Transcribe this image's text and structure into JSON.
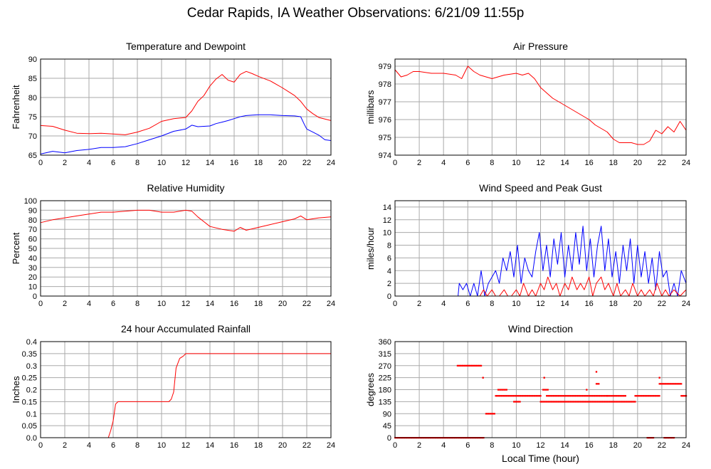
{
  "title": "Cedar Rapids, IA Weather Observations: 6/21/09 11:55p",
  "colors": {
    "red": "#ff0000",
    "blue": "#0000ff",
    "grid": "#aaaaaa",
    "frame": "#000000"
  },
  "chart_data": [
    {
      "id": "temp",
      "type": "line",
      "title": "Temperature and Dewpoint",
      "xlabel": "",
      "ylabel": "Fahrenheit",
      "xlim": [
        0,
        24
      ],
      "ylim": [
        65,
        90
      ],
      "x_ticks": [
        0,
        2,
        4,
        6,
        8,
        10,
        12,
        14,
        16,
        18,
        20,
        22,
        24
      ],
      "y_ticks": [
        65,
        70,
        75,
        80,
        85,
        90
      ],
      "grid": true,
      "series": [
        {
          "color": "#ff0000",
          "x": [
            0,
            1,
            2,
            3,
            4,
            5,
            6,
            7,
            8,
            9,
            10,
            11,
            12,
            12.5,
            13,
            13.5,
            14,
            14.5,
            15,
            15.5,
            16,
            16.5,
            17,
            17.5,
            18,
            19,
            20,
            21,
            21.5,
            22,
            22.5,
            23,
            24
          ],
          "y": [
            72.7,
            72.5,
            71.5,
            70.7,
            70.6,
            70.7,
            70.5,
            70.3,
            71.0,
            72.0,
            73.8,
            74.5,
            74.8,
            76.5,
            79.0,
            80.5,
            83.0,
            84.8,
            86.0,
            84.5,
            84.0,
            86.0,
            86.8,
            86.2,
            85.5,
            84.3,
            82.5,
            80.5,
            79.0,
            77.0,
            75.8,
            74.8,
            74.0
          ]
        },
        {
          "color": "#0000ff",
          "x": [
            0,
            1,
            2,
            3,
            4,
            5,
            6,
            7,
            8,
            9,
            10,
            11,
            12,
            12.5,
            13,
            13.5,
            14,
            14.5,
            15,
            15.5,
            16,
            16.5,
            17,
            17.5,
            18,
            19,
            20,
            21,
            21.5,
            21.8,
            22,
            22.5,
            23,
            23.5,
            24
          ],
          "y": [
            65.3,
            66.0,
            65.6,
            66.2,
            66.5,
            67.0,
            67.0,
            67.2,
            68.0,
            69.0,
            70.0,
            71.2,
            71.8,
            72.8,
            72.4,
            72.5,
            72.6,
            73.2,
            73.6,
            74.0,
            74.5,
            75.0,
            75.3,
            75.4,
            75.5,
            75.5,
            75.3,
            75.2,
            75.0,
            73.0,
            71.8,
            71.0,
            70.2,
            69.0,
            68.8
          ]
        }
      ]
    },
    {
      "id": "pressure",
      "type": "line",
      "title": "Air Pressure",
      "xlabel": "",
      "ylabel": "millibars",
      "xlim": [
        0,
        24
      ],
      "ylim": [
        974,
        979.4
      ],
      "x_ticks": [
        0,
        2,
        4,
        6,
        8,
        10,
        12,
        14,
        16,
        18,
        20,
        22,
        24
      ],
      "y_ticks": [
        974,
        975,
        976,
        977,
        978,
        979
      ],
      "grid": true,
      "series": [
        {
          "color": "#ff0000",
          "x": [
            0,
            0.5,
            1,
            1.5,
            2,
            3,
            4,
            5,
            5.5,
            6,
            6.5,
            7,
            8,
            9,
            10,
            10.5,
            11,
            11.5,
            12,
            12.5,
            13,
            13.5,
            14,
            14.5,
            15,
            15.5,
            16,
            16.5,
            17,
            17.5,
            18,
            18.5,
            19,
            19.5,
            20,
            20.5,
            21,
            21.5,
            22,
            22.5,
            23,
            23.5,
            24
          ],
          "y": [
            978.8,
            978.4,
            978.5,
            978.7,
            978.7,
            978.6,
            978.6,
            978.5,
            978.3,
            979.0,
            978.7,
            978.5,
            978.3,
            978.5,
            978.6,
            978.5,
            978.6,
            978.3,
            977.8,
            977.5,
            977.2,
            977.0,
            976.8,
            976.6,
            976.4,
            976.2,
            976.0,
            975.7,
            975.5,
            975.3,
            974.9,
            974.7,
            974.7,
            974.7,
            974.6,
            974.6,
            974.8,
            975.4,
            975.2,
            975.6,
            975.3,
            975.9,
            975.4
          ]
        }
      ]
    },
    {
      "id": "humidity",
      "type": "line",
      "title": "Relative Humidity",
      "xlabel": "",
      "ylabel": "Percent",
      "xlim": [
        0,
        24
      ],
      "ylim": [
        0,
        100
      ],
      "x_ticks": [
        0,
        2,
        4,
        6,
        8,
        10,
        12,
        14,
        16,
        18,
        20,
        22,
        24
      ],
      "y_ticks": [
        0,
        10,
        20,
        30,
        40,
        50,
        60,
        70,
        80,
        90,
        100
      ],
      "grid": true,
      "series": [
        {
          "color": "#ff0000",
          "x": [
            0,
            1,
            2,
            3,
            4,
            5,
            6,
            7,
            8,
            9,
            10,
            11,
            12,
            12.5,
            13,
            13.5,
            14,
            15,
            16,
            16.5,
            17,
            18,
            19,
            20,
            21,
            21.5,
            22,
            23,
            24
          ],
          "y": [
            77,
            80,
            82,
            84,
            86,
            88,
            88,
            89,
            90,
            90,
            88,
            88,
            90,
            89,
            83,
            78,
            73,
            70,
            68,
            72,
            69,
            72,
            75,
            78,
            81,
            84,
            80,
            82,
            83
          ]
        }
      ]
    },
    {
      "id": "wind",
      "type": "line",
      "title": "Wind Speed and Peak Gust",
      "xlabel": "",
      "ylabel": "miles/hour",
      "xlim": [
        0,
        24
      ],
      "ylim": [
        0,
        15
      ],
      "x_ticks": [
        0,
        2,
        4,
        6,
        8,
        10,
        12,
        14,
        16,
        18,
        20,
        22,
        24
      ],
      "y_ticks": [
        0,
        2,
        4,
        6,
        8,
        10,
        12,
        14
      ],
      "grid": true,
      "series": [
        {
          "color": "#0000ff",
          "x": [
            0,
            5.2,
            5.3,
            5.6,
            5.9,
            6.2,
            6.5,
            6.8,
            7.1,
            7.4,
            7.7,
            8.0,
            8.3,
            8.6,
            8.9,
            9.2,
            9.5,
            9.8,
            10.1,
            10.4,
            10.7,
            11.0,
            11.3,
            11.6,
            11.9,
            12.2,
            12.5,
            12.8,
            13.1,
            13.4,
            13.7,
            14.0,
            14.3,
            14.6,
            14.9,
            15.2,
            15.5,
            15.8,
            16.1,
            16.4,
            16.7,
            17.0,
            17.3,
            17.6,
            17.9,
            18.2,
            18.5,
            18.8,
            19.1,
            19.4,
            19.7,
            20.0,
            20.3,
            20.6,
            20.9,
            21.2,
            21.5,
            21.8,
            22.1,
            22.4,
            22.7,
            23.0,
            23.3,
            23.6,
            24.0
          ],
          "y": [
            0,
            0,
            2,
            1,
            2,
            0,
            2,
            0,
            4,
            0,
            2,
            3,
            4,
            2,
            6,
            4,
            7,
            3,
            8,
            2,
            6,
            4,
            3,
            7,
            10,
            4,
            8,
            3,
            9,
            5,
            10,
            3,
            8,
            4,
            10,
            5,
            11,
            4,
            9,
            3,
            8,
            11,
            4,
            9,
            3,
            7,
            2,
            8,
            4,
            9,
            2,
            8,
            3,
            7,
            2,
            6,
            1,
            7,
            3,
            4,
            0,
            2,
            0,
            4,
            2
          ]
        },
        {
          "color": "#ff0000",
          "x": [
            0,
            7.0,
            7.3,
            7.6,
            8.0,
            8.3,
            8.6,
            9.0,
            9.3,
            9.6,
            10.0,
            10.3,
            10.6,
            11.0,
            11.3,
            11.6,
            12.0,
            12.3,
            12.6,
            13.0,
            13.3,
            13.6,
            14.0,
            14.3,
            14.6,
            15.0,
            15.3,
            15.6,
            16.0,
            16.3,
            16.6,
            17.0,
            17.3,
            17.6,
            18.0,
            18.3,
            18.6,
            19.0,
            19.3,
            19.6,
            20.0,
            20.3,
            20.6,
            21.0,
            21.3,
            21.6,
            22.0,
            22.3,
            22.6,
            23.0,
            23.5,
            24.0
          ],
          "y": [
            0,
            0,
            1,
            0,
            1,
            0,
            0,
            1,
            0,
            0,
            1,
            0,
            2,
            0,
            1,
            0,
            2,
            1,
            3,
            1,
            2,
            0,
            2,
            1,
            3,
            1,
            2,
            1,
            3,
            0,
            2,
            3,
            1,
            2,
            0,
            2,
            0,
            1,
            0,
            2,
            0,
            1,
            0,
            1,
            0,
            2,
            0,
            1,
            0,
            1,
            0,
            1
          ]
        }
      ]
    },
    {
      "id": "rain",
      "type": "line",
      "title": "24 hour Accumulated Rainfall",
      "xlabel": "",
      "ylabel": "Inches",
      "xlim": [
        0,
        24
      ],
      "ylim": [
        0,
        0.4
      ],
      "x_ticks": [
        0,
        2,
        4,
        6,
        8,
        10,
        12,
        14,
        16,
        18,
        20,
        22,
        24
      ],
      "y_ticks": [
        0.0,
        0.05,
        0.1,
        0.15,
        0.2,
        0.25,
        0.3,
        0.35,
        0.4
      ],
      "y_tick_labels": [
        "0.0",
        "0.05",
        "0.1",
        "0.15",
        "0.2",
        "0.25",
        "0.3",
        "0.35",
        "0.4"
      ],
      "grid": true,
      "series": [
        {
          "color": "#ff0000",
          "x": [
            0,
            5.6,
            5.8,
            6.0,
            6.2,
            6.4,
            10.6,
            10.8,
            11.0,
            11.2,
            11.5,
            11.8,
            12.0,
            24.0
          ],
          "y": [
            0,
            0,
            0.03,
            0.07,
            0.14,
            0.15,
            0.15,
            0.16,
            0.19,
            0.29,
            0.33,
            0.34,
            0.35,
            0.35
          ]
        }
      ]
    },
    {
      "id": "direction",
      "type": "scatter",
      "title": "Wind Direction",
      "xlabel": "Local Time (hour)",
      "ylabel": "degrees",
      "xlim": [
        0,
        24
      ],
      "ylim": [
        0,
        360
      ],
      "x_ticks": [
        0,
        2,
        4,
        6,
        8,
        10,
        12,
        14,
        16,
        18,
        20,
        22,
        24
      ],
      "y_ticks": [
        0,
        45,
        90,
        135,
        180,
        225,
        270,
        315,
        360
      ],
      "grid": true,
      "series": [
        {
          "color": "#ff0000",
          "runs": [
            {
              "x0": 0.0,
              "x1": 5.1,
              "y": 0
            },
            {
              "x0": 5.15,
              "x1": 7.1,
              "y": 270
            },
            {
              "x0": 7.25,
              "x1": 7.25,
              "y": 225
            },
            {
              "x0": 5.2,
              "x1": 7.3,
              "y": 0
            },
            {
              "x0": 7.5,
              "x1": 8.2,
              "y": 90
            },
            {
              "x0": 8.5,
              "x1": 9.2,
              "y": 180
            },
            {
              "x0": 8.3,
              "x1": 12.0,
              "y": 157
            },
            {
              "x0": 9.8,
              "x1": 10.3,
              "y": 135
            },
            {
              "x0": 12.0,
              "x1": 19.8,
              "y": 135
            },
            {
              "x0": 12.5,
              "x1": 17.5,
              "y": 157
            },
            {
              "x0": 12.3,
              "x1": 12.3,
              "y": 225
            },
            {
              "x0": 12.2,
              "x1": 12.6,
              "y": 180
            },
            {
              "x0": 15.8,
              "x1": 15.8,
              "y": 180
            },
            {
              "x0": 16.6,
              "x1": 16.6,
              "y": 247
            },
            {
              "x0": 16.6,
              "x1": 16.8,
              "y": 202
            },
            {
              "x0": 17.5,
              "x1": 19.0,
              "y": 157
            },
            {
              "x0": 19.8,
              "x1": 21.8,
              "y": 157
            },
            {
              "x0": 20.8,
              "x1": 21.3,
              "y": 0
            },
            {
              "x0": 21.8,
              "x1": 21.8,
              "y": 225
            },
            {
              "x0": 21.8,
              "x1": 23.6,
              "y": 202
            },
            {
              "x0": 22.2,
              "x1": 23.0,
              "y": 0
            },
            {
              "x0": 23.6,
              "x1": 24.0,
              "y": 157
            }
          ]
        }
      ]
    }
  ]
}
